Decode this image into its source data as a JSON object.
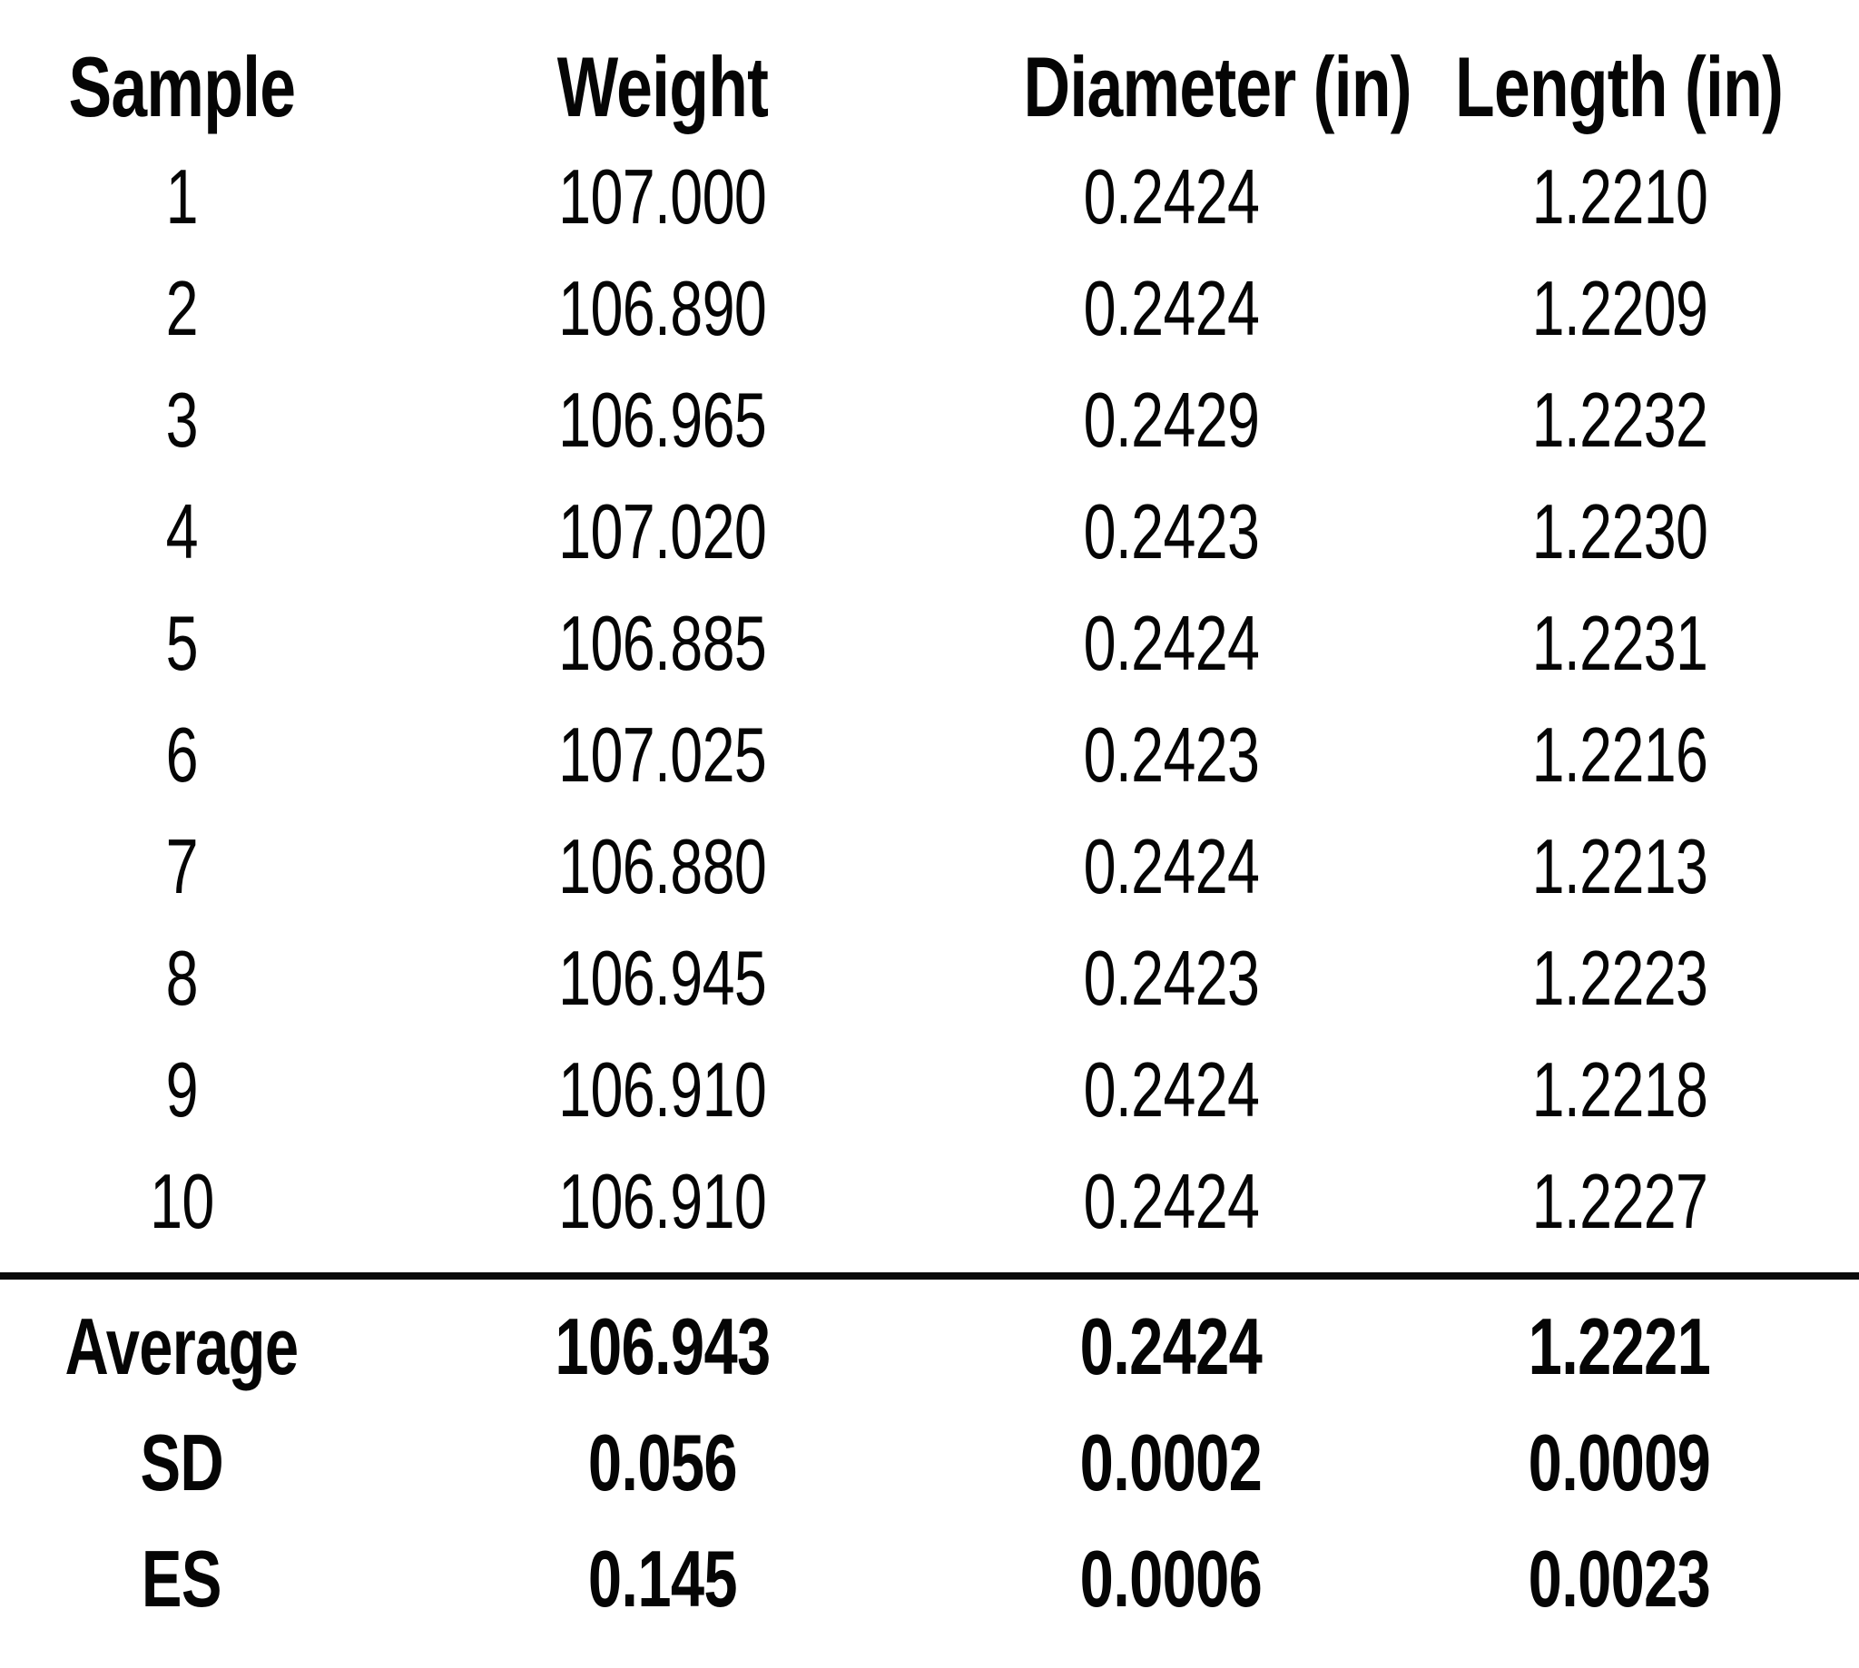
{
  "table": {
    "columns": [
      "Sample",
      "Weight",
      "Diameter (in)",
      "Length (in)"
    ],
    "rows": [
      {
        "sample": "1",
        "weight": "107.000",
        "diameter": "0.2424",
        "length": "1.2210"
      },
      {
        "sample": "2",
        "weight": "106.890",
        "diameter": "0.2424",
        "length": "1.2209"
      },
      {
        "sample": "3",
        "weight": "106.965",
        "diameter": "0.2429",
        "length": "1.2232"
      },
      {
        "sample": "4",
        "weight": "107.020",
        "diameter": "0.2423",
        "length": "1.2230"
      },
      {
        "sample": "5",
        "weight": "106.885",
        "diameter": "0.2424",
        "length": "1.2231"
      },
      {
        "sample": "6",
        "weight": "107.025",
        "diameter": "0.2423",
        "length": "1.2216"
      },
      {
        "sample": "7",
        "weight": "106.880",
        "diameter": "0.2424",
        "length": "1.2213"
      },
      {
        "sample": "8",
        "weight": "106.945",
        "diameter": "0.2423",
        "length": "1.2223"
      },
      {
        "sample": "9",
        "weight": "106.910",
        "diameter": "0.2424",
        "length": "1.2218"
      },
      {
        "sample": "10",
        "weight": "106.910",
        "diameter": "0.2424",
        "length": "1.2227"
      }
    ],
    "summary": [
      {
        "label": "Average",
        "weight": "106.943",
        "diameter": "0.2424",
        "length": "1.2221"
      },
      {
        "label": "SD",
        "weight": "0.056",
        "diameter": "0.0002",
        "length": "0.0009"
      },
      {
        "label": "ES",
        "weight": "0.145",
        "diameter": "0.0006",
        "length": "0.0023"
      }
    ]
  },
  "chart_data": {
    "type": "table",
    "title": "",
    "columns": [
      "Sample",
      "Weight",
      "Diameter (in)",
      "Length (in)"
    ],
    "rows": [
      [
        1,
        107.0,
        0.2424,
        1.221
      ],
      [
        2,
        106.89,
        0.2424,
        1.2209
      ],
      [
        3,
        106.965,
        0.2429,
        1.2232
      ],
      [
        4,
        107.02,
        0.2423,
        1.223
      ],
      [
        5,
        106.885,
        0.2424,
        1.2231
      ],
      [
        6,
        107.025,
        0.2423,
        1.2216
      ],
      [
        7,
        106.88,
        0.2424,
        1.2213
      ],
      [
        8,
        106.945,
        0.2423,
        1.2223
      ],
      [
        9,
        106.91,
        0.2424,
        1.2218
      ],
      [
        10,
        106.91,
        0.2424,
        1.2227
      ]
    ],
    "summary_rows": [
      [
        "Average",
        106.943,
        0.2424,
        1.2221
      ],
      [
        "SD",
        0.056,
        0.0002,
        0.0009
      ],
      [
        "ES",
        0.145,
        0.0006,
        0.0023
      ]
    ],
    "layout_hints": {
      "text_color": "#050505",
      "background_color": "#ffffff",
      "divider_above_summary": true,
      "header_bold": true,
      "summary_bold": true
    }
  }
}
